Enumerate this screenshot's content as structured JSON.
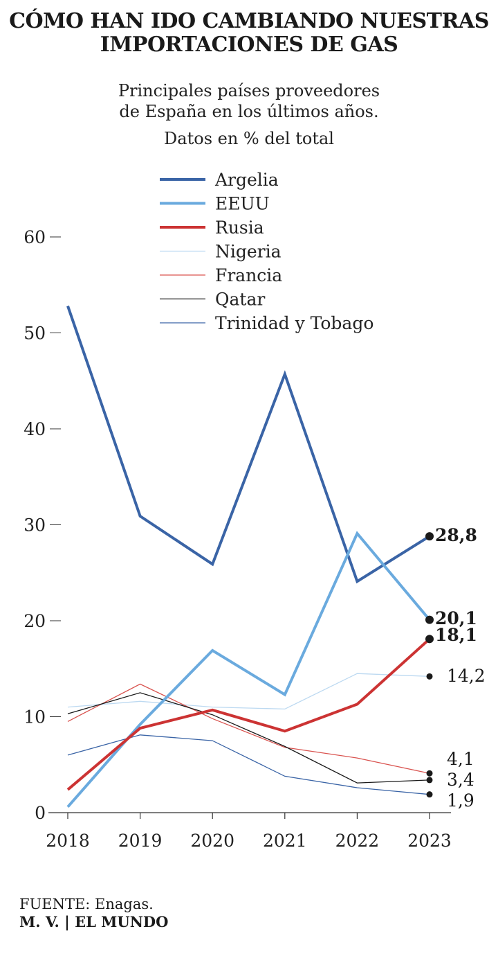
{
  "title_lines": [
    "CÓMO HAN IDO CAMBIANDO NUESTRAS",
    "IMPORTACIONES DE GAS"
  ],
  "subtitle_lines": [
    "Principales países proveedores",
    "de España en los últimos años."
  ],
  "units_note": "Datos en % del total",
  "source": "FUENTE: Enagas.",
  "credit": "M. V. | EL MUNDO",
  "chart_data": {
    "type": "line",
    "title": "CÓMO HAN IDO CAMBIANDO NUESTRAS IMPORTACIONES DE GAS",
    "subtitle": "Principales países proveedores de España en los últimos años.",
    "ylabel": "Datos en % del total",
    "x": [
      "2018",
      "2019",
      "2020",
      "2021",
      "2022",
      "2023"
    ],
    "ylim": [
      0,
      60
    ],
    "yticks": [
      0,
      10,
      20,
      30,
      40,
      50,
      60
    ],
    "grid": false,
    "legend_position": "top-center",
    "series": [
      {
        "name": "Argelia",
        "color": "#3a64a6",
        "weight": "thick",
        "values": [
          52.8,
          30.9,
          25.9,
          45.7,
          24.1,
          28.8
        ],
        "end_label": "28,8",
        "end_bold": true
      },
      {
        "name": "EEUU",
        "color": "#6aaade",
        "weight": "thick",
        "values": [
          0.6,
          9.2,
          16.9,
          12.3,
          29.1,
          20.1
        ],
        "end_label": "20,1",
        "end_bold": true
      },
      {
        "name": "Rusia",
        "color": "#cc3333",
        "weight": "thick",
        "values": [
          2.4,
          8.8,
          10.7,
          8.5,
          11.3,
          18.1
        ],
        "end_label": "18,1",
        "end_bold": true
      },
      {
        "name": "Nigeria",
        "color": "#bcd9f1",
        "weight": "thin",
        "values": [
          11.0,
          11.6,
          11.0,
          10.8,
          14.5,
          14.2
        ],
        "end_label": "14,2",
        "end_bold": false
      },
      {
        "name": "Francia",
        "color": "#d9534f",
        "weight": "thin",
        "values": [
          9.5,
          13.4,
          9.8,
          6.8,
          5.7,
          4.1
        ],
        "end_label": "4,1",
        "end_bold": false
      },
      {
        "name": "Qatar",
        "color": "#1a1a1a",
        "weight": "thin",
        "values": [
          10.3,
          12.5,
          10.2,
          6.9,
          3.1,
          3.4
        ],
        "end_label": "3,4",
        "end_bold": false
      },
      {
        "name": "Trinidad y Tobago",
        "color": "#3a64a6",
        "weight": "thin",
        "values": [
          6.0,
          8.1,
          7.5,
          3.8,
          2.6,
          1.9
        ],
        "end_label": "1,9",
        "end_bold": false
      }
    ]
  }
}
